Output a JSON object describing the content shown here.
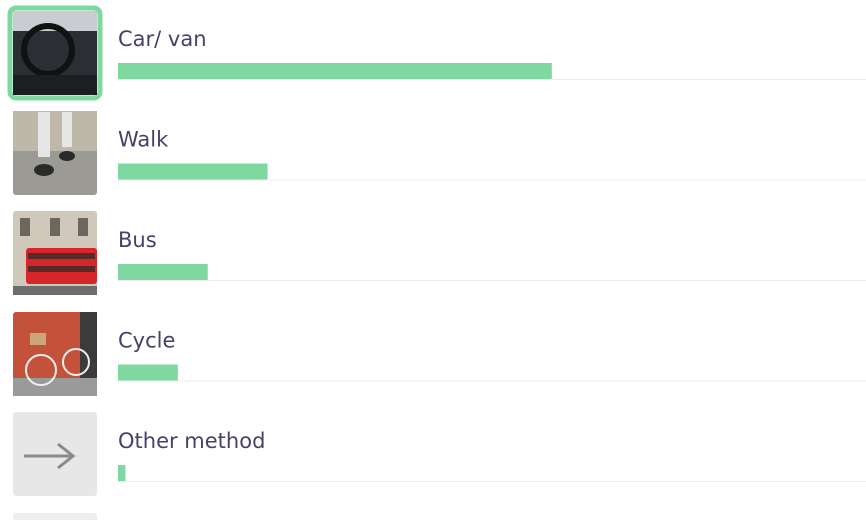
{
  "chart_data": {
    "type": "bar",
    "categories": [
      "Car/ van",
      "Walk",
      "Bus",
      "Cycle",
      "Other method"
    ],
    "values": [
      58,
      20,
      12,
      8,
      1
    ],
    "color": "#7ed8a0",
    "xlim": [
      0,
      100
    ]
  }
}
